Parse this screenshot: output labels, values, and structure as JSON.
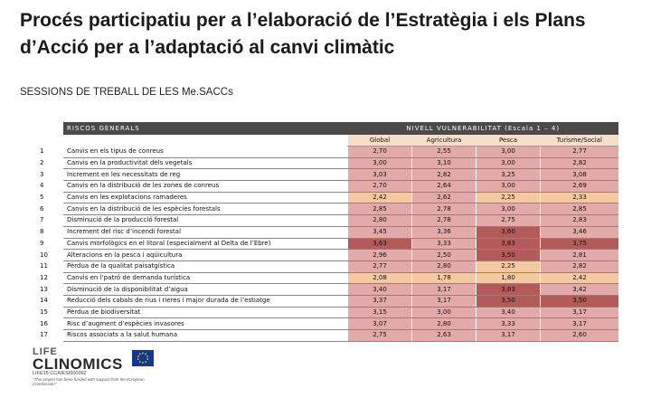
{
  "title": "Procés participatiu per a l’elaboració de l’Estratègia i els Plans d’Acció per a l’adaptació al canvi climàtic",
  "subtitle": "SESSIONS DE TREBALL DE LES Me.SACCs",
  "table": {
    "risks_header": "RISCOS GENERALS",
    "level_header": "NIVELL VULNERABILITAT (Escala 1 – 4)",
    "columns": [
      "Global",
      "Agricultura",
      "Pesca",
      "Turisme/Social"
    ],
    "rows": [
      {
        "n": "1",
        "risk": "Canvis en els tipus de conreus",
        "v": [
          "2,70",
          "2,55",
          "3,00",
          "2,77"
        ],
        "c": [
          "#e3aaaa",
          "#e3aaaa",
          "#e3aaaa",
          "#e3aaaa"
        ]
      },
      {
        "n": "2",
        "risk": "Canvis en la productivitat dels vegetals",
        "v": [
          "3,00",
          "3,10",
          "3,00",
          "2,82"
        ],
        "c": [
          "#e3aaaa",
          "#e3aaaa",
          "#e3aaaa",
          "#e3aaaa"
        ]
      },
      {
        "n": "3",
        "risk": "Increment en les necessitats de reg",
        "v": [
          "3,03",
          "2,82",
          "3,25",
          "3,08"
        ],
        "c": [
          "#e3aaaa",
          "#e3aaaa",
          "#e3aaaa",
          "#e3aaaa"
        ]
      },
      {
        "n": "4",
        "risk": "Canvis en la distribució de les zones de conreus",
        "v": [
          "2,70",
          "2,64",
          "3,00",
          "2,69"
        ],
        "c": [
          "#e3aaaa",
          "#e3aaaa",
          "#e3aaaa",
          "#e3aaaa"
        ]
      },
      {
        "n": "5",
        "risk": "Canvis en les explotacions ramaderes",
        "v": [
          "2,42",
          "2,62",
          "2,25",
          "2,33"
        ],
        "c": [
          "#f4c9a0",
          "#e3aaaa",
          "#f4c9a0",
          "#f4c9a0"
        ]
      },
      {
        "n": "6",
        "risk": "Canvis en la distribució de les espècies forestals",
        "v": [
          "2,85",
          "2,78",
          "3,00",
          "2,85"
        ],
        "c": [
          "#e3aaaa",
          "#e3aaaa",
          "#e3aaaa",
          "#e3aaaa"
        ]
      },
      {
        "n": "7",
        "risk": "Disminució de la producció forestal",
        "v": [
          "2,80",
          "2,78",
          "2,75",
          "2,83"
        ],
        "c": [
          "#e3aaaa",
          "#e3aaaa",
          "#e3aaaa",
          "#e3aaaa"
        ]
      },
      {
        "n": "8",
        "risk": "Increment del risc d’incendi forestal",
        "v": [
          "3,45",
          "3,36",
          "3,60",
          "3,46"
        ],
        "c": [
          "#e3aaaa",
          "#e3aaaa",
          "#b35a5a",
          "#e3aaaa"
        ]
      },
      {
        "n": "9",
        "risk": "Canvis morfològics en el litoral (especialment al Delta de l’Ebre)",
        "v": [
          "3,63",
          "3,33",
          "3,83",
          "3,75"
        ],
        "c": [
          "#b35a5a",
          "#e3aaaa",
          "#b35a5a",
          "#b35a5a"
        ]
      },
      {
        "n": "10",
        "risk": "Alteracions en la pesca i aqüicultura",
        "v": [
          "2,96",
          "2,50",
          "3,50",
          "2,81"
        ],
        "c": [
          "#e3aaaa",
          "#e3aaaa",
          "#b35a5a",
          "#e3aaaa"
        ]
      },
      {
        "n": "11",
        "risk": "Pèrdua de la qualitat paisatgística",
        "v": [
          "2,77",
          "2,80",
          "2,25",
          "2,82"
        ],
        "c": [
          "#e3aaaa",
          "#e3aaaa",
          "#f4c9a0",
          "#e3aaaa"
        ]
      },
      {
        "n": "12",
        "risk": "Canvis en l’patró de demanda turística",
        "v": [
          "2,08",
          "1,78",
          "1,80",
          "2,42"
        ],
        "c": [
          "#f4c9a0",
          "#f4c9a0",
          "#f4c9a0",
          "#f4c9a0"
        ]
      },
      {
        "n": "13",
        "risk": "Disminució de la disponibilitat d’aigua",
        "v": [
          "3,40",
          "3,17",
          "3,83",
          "3,42"
        ],
        "c": [
          "#e3aaaa",
          "#e3aaaa",
          "#b35a5a",
          "#e3aaaa"
        ]
      },
      {
        "n": "14",
        "risk": "Reducció dels cabals de rius i rieres i major durada de l’estiatge",
        "v": [
          "3,37",
          "3,17",
          "3,50",
          "3,50"
        ],
        "c": [
          "#e3aaaa",
          "#e3aaaa",
          "#b35a5a",
          "#b35a5a"
        ]
      },
      {
        "n": "15",
        "risk": "Pèrdua de biodiversitat",
        "v": [
          "3,15",
          "3,00",
          "3,40",
          "3,17"
        ],
        "c": [
          "#e3aaaa",
          "#e3aaaa",
          "#e3aaaa",
          "#e3aaaa"
        ]
      },
      {
        "n": "16",
        "risk": "Risc d’augment d’espècies invasores",
        "v": [
          "3,07",
          "2,80",
          "3,33",
          "3,17"
        ],
        "c": [
          "#e3aaaa",
          "#e3aaaa",
          "#e3aaaa",
          "#e3aaaa"
        ]
      },
      {
        "n": "17",
        "risk": "Riscos associats a la salut humana",
        "v": [
          "2,75",
          "2,63",
          "3,17",
          "2,60"
        ],
        "c": [
          "#e3aaaa",
          "#e3aaaa",
          "#e3aaaa",
          "#e3aaaa"
        ]
      }
    ]
  },
  "logo": {
    "life": "LIFE",
    "clinomics": "CLINOMICS",
    "code": "LIFE15 CCA/ES/000092",
    "note": "\"This project has been funded with support from the European Commission\""
  }
}
